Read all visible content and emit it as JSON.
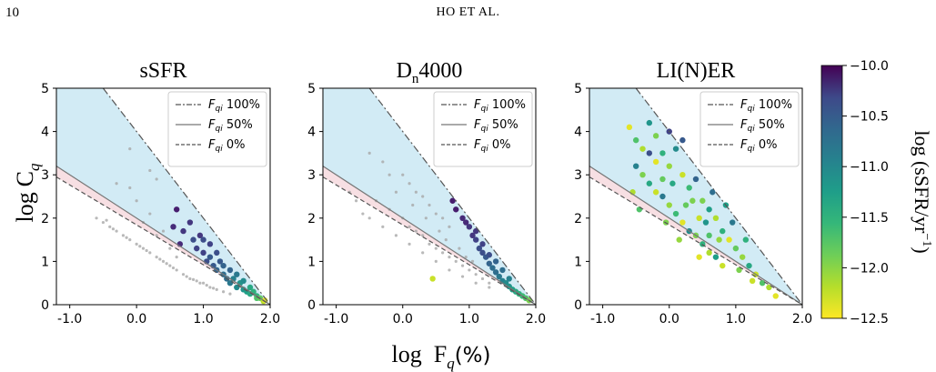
{
  "page": {
    "page_number": "10",
    "running_head": "HO ET AL."
  },
  "figure": {
    "ylabel_main": "log",
    "ylabel_sym": "C",
    "ylabel_sub": "q",
    "xlabel_main": "log  F",
    "xlabel_sub": "q",
    "xlabel_unit": "(%)",
    "colorbar": {
      "label": "log (sSFR/yr",
      "label_sup": "−1",
      "label_close": ")",
      "ticks": [
        "−10.0",
        "−10.5",
        "−11.0",
        "−11.5",
        "−12.0",
        "−12.5"
      ],
      "tick_values": [
        -10.0,
        -10.5,
        -11.0,
        -11.5,
        -12.0,
        -12.5
      ],
      "range": [
        -12.5,
        -10.0
      ],
      "colormap": "viridis"
    },
    "legend_entries": [
      {
        "prefix": "F",
        "sub": "qi",
        "suffix": " 100%",
        "style": "dashdot"
      },
      {
        "prefix": "F",
        "sub": "qi",
        "suffix": " 50%",
        "style": "solid"
      },
      {
        "prefix": "F",
        "sub": "qi",
        "suffix": " 0%",
        "style": "dashed"
      }
    ],
    "colors": {
      "region_blue": "#d2ebf5",
      "region_pink": "#f7dfe3",
      "grey_points": "#a8a8a8",
      "line_color": "#555555"
    }
  },
  "chart_data": [
    {
      "type": "scatter",
      "title": "sSFR",
      "xlim": [
        -1.2,
        2.0
      ],
      "ylim": [
        0,
        5
      ],
      "xticks": [
        "-1.0",
        "0.0",
        "1.0",
        "2.0"
      ],
      "yticks": [
        "0",
        "1",
        "2",
        "3",
        "4",
        "5"
      ],
      "color_points": [
        [
          0.65,
          1.4,
          -10.3
        ],
        [
          0.7,
          1.7,
          -10.4
        ],
        [
          0.8,
          1.9,
          -10.4
        ],
        [
          0.85,
          1.5,
          -10.6
        ],
        [
          0.9,
          1.3,
          -10.5
        ],
        [
          0.95,
          1.6,
          -10.4
        ],
        [
          1.0,
          1.2,
          -10.5
        ],
        [
          1.0,
          1.5,
          -10.6
        ],
        [
          1.05,
          1.0,
          -10.6
        ],
        [
          1.1,
          1.4,
          -10.5
        ],
        [
          1.1,
          1.1,
          -10.7
        ],
        [
          1.15,
          0.9,
          -10.7
        ],
        [
          1.2,
          1.2,
          -10.6
        ],
        [
          1.2,
          0.8,
          -10.8
        ],
        [
          1.25,
          1.0,
          -10.7
        ],
        [
          1.3,
          0.7,
          -10.9
        ],
        [
          1.3,
          0.9,
          -10.8
        ],
        [
          1.35,
          0.6,
          -10.9
        ],
        [
          1.4,
          0.8,
          -10.8
        ],
        [
          1.4,
          0.5,
          -11.0
        ],
        [
          1.45,
          0.6,
          -11.1
        ],
        [
          1.5,
          0.4,
          -11.2
        ],
        [
          1.5,
          0.7,
          -11.0
        ],
        [
          1.55,
          0.5,
          -11.3
        ],
        [
          1.6,
          0.35,
          -11.3
        ],
        [
          1.6,
          0.55,
          -11.2
        ],
        [
          1.65,
          0.3,
          -11.4
        ],
        [
          1.7,
          0.4,
          -11.5
        ],
        [
          1.7,
          0.25,
          -11.5
        ],
        [
          1.75,
          0.3,
          -11.6
        ],
        [
          1.8,
          0.2,
          -11.6
        ],
        [
          1.8,
          0.15,
          -11.8
        ],
        [
          1.85,
          0.15,
          -11.9
        ],
        [
          1.9,
          0.08,
          -12.2
        ],
        [
          1.92,
          0.1,
          -12.4
        ],
        [
          0.6,
          2.2,
          -10.2
        ],
        [
          0.55,
          1.8,
          -10.3
        ]
      ],
      "grey_points": [
        [
          -0.3,
          2.8
        ],
        [
          -0.1,
          2.7
        ],
        [
          0.0,
          2.4
        ],
        [
          0.1,
          1.9
        ],
        [
          0.2,
          2.1
        ],
        [
          0.3,
          1.6
        ],
        [
          0.4,
          1.7
        ],
        [
          0.5,
          1.3
        ],
        [
          0.6,
          1.1
        ],
        [
          -0.5,
          1.9
        ],
        [
          -0.4,
          1.8
        ],
        [
          -0.3,
          1.7
        ],
        [
          -0.2,
          1.6
        ],
        [
          -0.1,
          1.5
        ],
        [
          0.0,
          1.4
        ],
        [
          0.1,
          1.3
        ],
        [
          0.2,
          1.2
        ],
        [
          0.3,
          1.1
        ],
        [
          0.4,
          1.0
        ],
        [
          0.5,
          0.9
        ],
        [
          0.6,
          0.8
        ],
        [
          0.7,
          0.7
        ],
        [
          0.8,
          0.6
        ],
        [
          0.9,
          0.55
        ],
        [
          1.0,
          0.5
        ],
        [
          1.1,
          0.4
        ],
        [
          1.2,
          0.35
        ],
        [
          -0.6,
          2.0
        ],
        [
          -0.45,
          1.95
        ],
        [
          -0.35,
          1.75
        ],
        [
          -0.15,
          1.55
        ],
        [
          0.05,
          1.35
        ],
        [
          0.15,
          1.25
        ],
        [
          0.35,
          1.05
        ],
        [
          0.45,
          0.95
        ],
        [
          0.55,
          0.85
        ],
        [
          0.75,
          0.65
        ],
        [
          0.85,
          0.58
        ],
        [
          0.95,
          0.5
        ],
        [
          1.05,
          0.45
        ],
        [
          1.15,
          0.38
        ],
        [
          1.3,
          0.3
        ],
        [
          1.4,
          0.25
        ],
        [
          0.2,
          3.1
        ],
        [
          -0.1,
          3.6
        ],
        [
          0.3,
          2.9
        ]
      ]
    },
    {
      "type": "scatter",
      "title": "D",
      "title_sub": "n",
      "title_rest": "4000",
      "xlim": [
        -1.2,
        2.0
      ],
      "ylim": [
        0,
        5
      ],
      "xticks": [
        "-1.0",
        "0.0",
        "1.0",
        "2.0"
      ],
      "yticks": [
        "0",
        "1",
        "2",
        "3",
        "4",
        "5"
      ],
      "color_points": [
        [
          0.8,
          2.2,
          -10.2
        ],
        [
          0.9,
          2.0,
          -10.3
        ],
        [
          1.0,
          1.8,
          -10.4
        ],
        [
          1.05,
          1.6,
          -10.4
        ],
        [
          1.1,
          1.5,
          -10.5
        ],
        [
          1.15,
          1.3,
          -10.6
        ],
        [
          1.2,
          1.2,
          -10.6
        ],
        [
          1.25,
          1.1,
          -10.7
        ],
        [
          1.3,
          0.95,
          -10.8
        ],
        [
          1.35,
          0.85,
          -10.9
        ],
        [
          1.4,
          0.75,
          -10.9
        ],
        [
          1.45,
          0.65,
          -11.0
        ],
        [
          1.5,
          0.55,
          -11.1
        ],
        [
          1.55,
          0.5,
          -11.2
        ],
        [
          1.6,
          0.42,
          -11.3
        ],
        [
          1.65,
          0.35,
          -11.4
        ],
        [
          1.7,
          0.3,
          -11.5
        ],
        [
          1.75,
          0.25,
          -11.6
        ],
        [
          1.8,
          0.2,
          -11.7
        ],
        [
          1.85,
          0.15,
          -11.8
        ],
        [
          1.9,
          0.1,
          -12.0
        ],
        [
          0.95,
          1.9,
          -10.3
        ],
        [
          1.1,
          1.7,
          -10.4
        ],
        [
          1.2,
          1.4,
          -10.5
        ],
        [
          1.3,
          1.15,
          -10.6
        ],
        [
          0.45,
          0.6,
          -12.3
        ],
        [
          0.75,
          2.4,
          -10.2
        ],
        [
          1.4,
          1.0,
          -10.8
        ],
        [
          1.5,
          0.8,
          -10.9
        ],
        [
          1.6,
          0.6,
          -11.1
        ]
      ],
      "grey_points": [
        [
          -0.5,
          3.5
        ],
        [
          -0.3,
          3.3
        ],
        [
          -0.2,
          3.0
        ],
        [
          0.0,
          3.0
        ],
        [
          0.1,
          2.8
        ],
        [
          0.2,
          2.6
        ],
        [
          0.3,
          2.5
        ],
        [
          0.4,
          2.3
        ],
        [
          0.5,
          2.1
        ],
        [
          0.6,
          2.0
        ],
        [
          0.7,
          1.8
        ],
        [
          -0.4,
          2.4
        ],
        [
          -0.2,
          2.2
        ],
        [
          0.0,
          2.0
        ],
        [
          0.1,
          1.8
        ],
        [
          0.2,
          1.7
        ],
        [
          0.3,
          1.6
        ],
        [
          0.4,
          1.4
        ],
        [
          0.5,
          1.3
        ],
        [
          0.6,
          1.2
        ],
        [
          0.7,
          1.1
        ],
        [
          0.8,
          1.0
        ],
        [
          0.9,
          0.9
        ],
        [
          1.0,
          0.8
        ],
        [
          1.1,
          0.7
        ],
        [
          1.2,
          0.6
        ],
        [
          1.3,
          0.5
        ],
        [
          -0.6,
          2.1
        ],
        [
          -0.5,
          2.0
        ],
        [
          -0.3,
          1.8
        ],
        [
          -0.1,
          1.6
        ],
        [
          0.1,
          1.4
        ],
        [
          0.3,
          1.2
        ],
        [
          0.5,
          1.0
        ],
        [
          0.7,
          0.8
        ],
        [
          0.9,
          0.65
        ],
        [
          1.1,
          0.5
        ],
        [
          1.3,
          0.4
        ],
        [
          -0.1,
          2.6
        ],
        [
          0.15,
          2.3
        ],
        [
          0.35,
          2.0
        ],
        [
          0.55,
          1.7
        ],
        [
          0.65,
          1.5
        ],
        [
          0.85,
          1.3
        ],
        [
          0.95,
          1.1
        ],
        [
          1.05,
          1.0
        ],
        [
          -0.8,
          2.6
        ],
        [
          -0.7,
          2.4
        ]
      ]
    },
    {
      "type": "scatter",
      "title": "LI(N)ER",
      "xlim": [
        -1.2,
        2.0
      ],
      "ylim": [
        0,
        5
      ],
      "xticks": [
        "-1.0",
        "0.0",
        "1.0",
        "2.0"
      ],
      "yticks": [
        "0",
        "1",
        "2",
        "3",
        "4",
        "5"
      ],
      "color_points": [
        [
          -0.6,
          4.1,
          -12.4
        ],
        [
          -0.5,
          3.8,
          -11.8
        ],
        [
          -0.4,
          3.6,
          -12.2
        ],
        [
          -0.3,
          4.2,
          -11.3
        ],
        [
          -0.2,
          3.9,
          -12.0
        ],
        [
          -0.1,
          3.5,
          -11.6
        ],
        [
          0.0,
          3.2,
          -12.1
        ],
        [
          0.1,
          3.6,
          -11.2
        ],
        [
          0.2,
          3.0,
          -12.3
        ],
        [
          0.3,
          2.7,
          -11.7
        ],
        [
          0.4,
          2.9,
          -10.8
        ],
        [
          0.5,
          2.4,
          -12.0
        ],
        [
          0.6,
          2.2,
          -11.4
        ],
        [
          0.7,
          2.0,
          -12.2
        ],
        [
          0.8,
          1.7,
          -11.6
        ],
        [
          0.9,
          1.5,
          -12.4
        ],
        [
          1.0,
          1.3,
          -11.9
        ],
        [
          1.1,
          1.1,
          -12.1
        ],
        [
          1.2,
          0.9,
          -11.5
        ],
        [
          1.3,
          0.7,
          -12.3
        ],
        [
          1.4,
          0.5,
          -11.8
        ],
        [
          1.5,
          0.4,
          -12.2
        ],
        [
          -0.5,
          3.2,
          -11.1
        ],
        [
          -0.4,
          3.0,
          -12.0
        ],
        [
          -0.3,
          2.8,
          -11.5
        ],
        [
          -0.2,
          2.6,
          -12.3
        ],
        [
          -0.1,
          2.5,
          -11.0
        ],
        [
          0.0,
          2.3,
          -12.1
        ],
        [
          0.1,
          2.1,
          -11.7
        ],
        [
          0.2,
          1.9,
          -12.4
        ],
        [
          0.3,
          1.7,
          -11.2
        ],
        [
          0.4,
          1.6,
          -12.0
        ],
        [
          0.5,
          1.4,
          -11.6
        ],
        [
          0.6,
          1.2,
          -12.2
        ],
        [
          0.7,
          1.1,
          -11.4
        ],
        [
          0.8,
          0.9,
          -12.3
        ],
        [
          -0.3,
          3.5,
          -10.6
        ],
        [
          0.0,
          4.0,
          -10.5
        ],
        [
          0.2,
          3.8,
          -10.7
        ],
        [
          -0.1,
          2.9,
          -11.9
        ],
        [
          0.35,
          2.4,
          -12.0
        ],
        [
          0.55,
          1.9,
          -11.3
        ],
        [
          0.75,
          1.5,
          -12.1
        ],
        [
          0.95,
          1.9,
          -11.0
        ],
        [
          1.15,
          1.5,
          -11.6
        ],
        [
          0.65,
          2.6,
          -10.9
        ],
        [
          0.85,
          2.3,
          -11.4
        ],
        [
          -0.55,
          2.6,
          -12.2
        ],
        [
          -0.45,
          2.2,
          -11.8
        ],
        [
          0.15,
          1.5,
          -12.1
        ],
        [
          0.45,
          1.1,
          -12.4
        ],
        [
          1.05,
          0.8,
          -12.0
        ],
        [
          1.25,
          0.55,
          -12.3
        ],
        [
          1.6,
          0.2,
          -12.4
        ],
        [
          -0.2,
          3.3,
          -12.4
        ],
        [
          0.05,
          2.8,
          -11.5
        ],
        [
          0.25,
          2.3,
          -11.9
        ],
        [
          0.45,
          2.0,
          -12.3
        ],
        [
          -0.05,
          1.9,
          -12.0
        ],
        [
          0.6,
          1.6,
          -11.8
        ]
      ],
      "grey_points": []
    }
  ]
}
